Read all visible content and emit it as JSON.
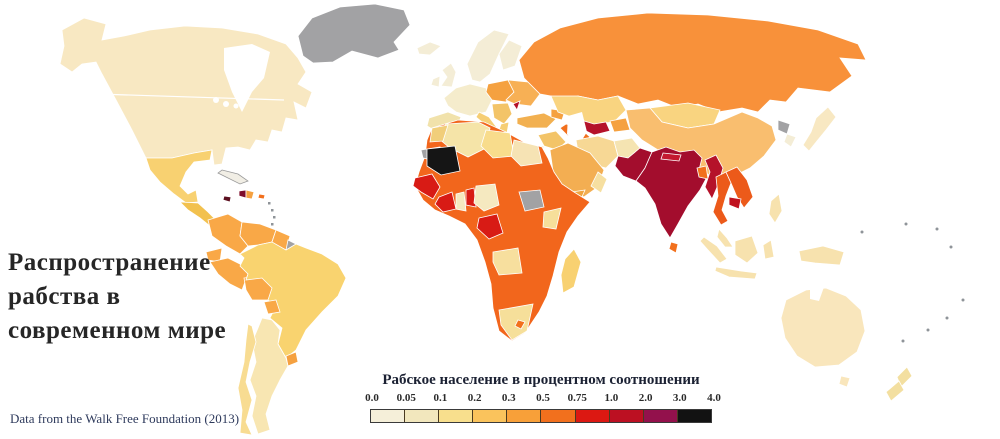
{
  "title": {
    "line1": "Распространение",
    "line2": "рабства в",
    "line3": "современном мире"
  },
  "legend": {
    "title": "Рабское население в процентном соотношении",
    "ticks": [
      "0.0",
      "0.05",
      "0.1",
      "0.2",
      "0.3",
      "0.5",
      "0.75",
      "1.0",
      "2.0",
      "3.0",
      "4.0"
    ],
    "colors": [
      "#F5EFD9",
      "#F2E7BD",
      "#F8DF8D",
      "#FAC35C",
      "#F8A039",
      "#F2701D",
      "#DC1812",
      "#BC1022",
      "#93114C",
      "#121212"
    ]
  },
  "attribution": "Data from the Walk Free Foundation (2013)",
  "map": {
    "ocean": "#FFFFFF",
    "no_data": "#A2A2A4",
    "speck": "#8F9499",
    "regions": {
      "greenland": "#A2A2A4",
      "canada_usa": "#F8E8C2",
      "iceland": "#F4EDD6",
      "uk": "#F4EDD6",
      "ireland": "#F4EDD6",
      "scandinavia": "#F4EDD6",
      "finland": "#F4EDD6",
      "western_europe": "#F5ECCC",
      "spain": "#F1E2AB",
      "italy": "#F6CE74",
      "eastern_europe": "#F5A140",
      "ukraine_belarus": "#F7B055",
      "moldova": "#B5122A",
      "balkans": "#F3C468",
      "greece": "#F6CE74",
      "turkey": "#F2B050",
      "caucasus": "#F5A140",
      "russia": "#F8913A",
      "kazakhstan": "#F9D480",
      "mongolia": "#F9D480",
      "uzbekistan": "#B5122A",
      "turkmenistan": "#F2701D",
      "kyrgyzstan_tajikistan": "#F5A140",
      "china": "#F9BE6F",
      "north_korea": "#A2A2A4",
      "south_korea": "#F4EDD6",
      "japan": "#F8E8C2",
      "iran": "#F7D895",
      "afghanistan": "#F5E4B2",
      "pakistan": "#A30D2D",
      "india": "#A30D2D",
      "nepal": "#C41A30",
      "bangladesh": "#F2701D",
      "sri_lanka": "#F2701D",
      "myanmar": "#B5122A",
      "thailand": "#EC5A1A",
      "laos_vietnam": "#EC5A1A",
      "cambodia": "#C0121F",
      "malaysia": "#F7E2AE",
      "indonesia": "#F7E2AE",
      "philippines": "#F7E2AE",
      "new_guinea": "#F7E2AE",
      "australia": "#F9E6BC",
      "tasmania": "#F9E6BC",
      "new_zealand": "#F3DFA0",
      "mexico": "#F8D171",
      "central_america": "#F2C14E",
      "panama_costa_rica": "#F5A140",
      "cuba": "#F1EEE5",
      "haiti": "#7E0C2A",
      "dominican_republic": "#F5A140",
      "jamaica": "#5C1020",
      "puerto_rico": "#F2701D",
      "colombia": "#F9A847",
      "venezuela": "#F9A847",
      "guyana_suriname": "#F9A847",
      "french_guiana": "#A2A2A4",
      "ecuador": "#F9A847",
      "peru": "#F9A847",
      "bolivia": "#F9A847",
      "paraguay": "#F9A847",
      "uruguay": "#F5A140",
      "brazil": "#F9D36F",
      "argentina": "#F8E6B2",
      "chile": "#F8DC92",
      "africa_central": "#F2661C",
      "algeria": "#F5E4A8",
      "morocco": "#F1CE7A",
      "western_sahara": "#A2A2A4",
      "mauritania": "#151515",
      "libya": "#F8DC8C",
      "egypt": "#F6E3B4",
      "senegal_guinea": "#D81B15",
      "cote_divoire": "#D81B15",
      "ghana": "#F5E9C0",
      "togo_benin": "#D81B15",
      "nigeria": "#F5E9C0",
      "gabon_congo": "#D81B15",
      "south_sudan": "#A2A2A4",
      "kenya": "#F6DF9A",
      "angola": "#F7DF9E",
      "south_africa": "#F6DF9A",
      "lesotho": "#F2701D",
      "madagascar": "#F8D171",
      "saudi_arabia": "#F3AE52",
      "yemen": "#F0A440",
      "oman": "#F6DFA0",
      "iraq_syria": "#F3C468",
      "israel_jordan": "#F6E3B4"
    }
  }
}
